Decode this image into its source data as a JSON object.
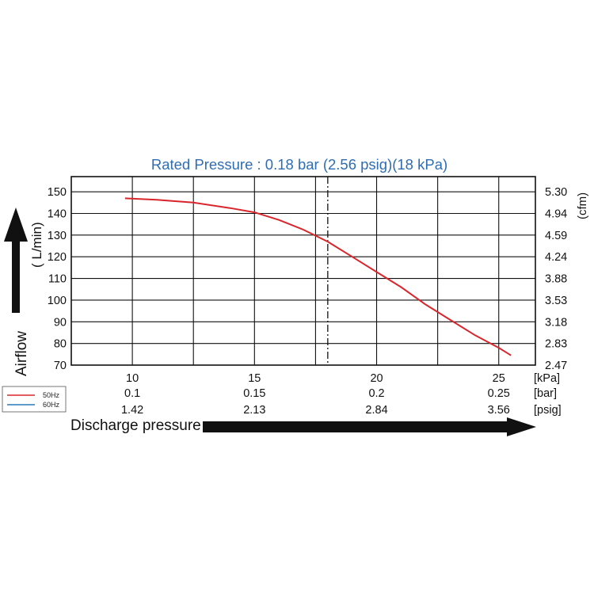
{
  "chart_data": {
    "type": "line",
    "title": "Rated Pressure : 0.18 bar (2.56 psig)(18 kPa)",
    "xlabel": "Discharge pressure",
    "ylabel_left": "Airflow",
    "ylabel_left_unit": "( L/min)",
    "ylabel_right_unit": "(cfm)",
    "xlim": [
      7.5,
      26.5
    ],
    "ylim": [
      70,
      157
    ],
    "grid": true,
    "rated_pressure_kpa": 18,
    "x_rows": [
      {
        "unit": "[kPa]",
        "ticks": [
          {
            "x": 10,
            "label": "10"
          },
          {
            "x": 15,
            "label": "15"
          },
          {
            "x": 20,
            "label": "20"
          },
          {
            "x": 25,
            "label": "25"
          }
        ]
      },
      {
        "unit": "[bar]",
        "ticks": [
          {
            "x": 10,
            "label": "0.1"
          },
          {
            "x": 15,
            "label": "0.15"
          },
          {
            "x": 20,
            "label": "0.2"
          },
          {
            "x": 25,
            "label": "0.25"
          }
        ]
      },
      {
        "unit": "[psig]",
        "ticks": [
          {
            "x": 10,
            "label": "1.42"
          },
          {
            "x": 15,
            "label": "2.13"
          },
          {
            "x": 20,
            "label": "2.84"
          },
          {
            "x": 25,
            "label": "3.56"
          }
        ]
      }
    ],
    "y_ticks_left": [
      70,
      80,
      90,
      100,
      110,
      120,
      130,
      140,
      150
    ],
    "y_ticks_right": [
      {
        "y": 70,
        "label": "2.47"
      },
      {
        "y": 80,
        "label": "2.83"
      },
      {
        "y": 90,
        "label": "3.18"
      },
      {
        "y": 100,
        "label": "3.53"
      },
      {
        "y": 110,
        "label": "3.88"
      },
      {
        "y": 120,
        "label": "4.24"
      },
      {
        "y": 130,
        "label": "4.59"
      },
      {
        "y": 140,
        "label": "4.94"
      },
      {
        "y": 150,
        "label": "5.30"
      }
    ],
    "series": [
      {
        "name": "50Hz",
        "color": "#d9262c",
        "x": [
          9.7,
          11.0,
          12.5,
          14.0,
          15.0,
          16.0,
          17.0,
          18.0,
          19.0,
          20.0,
          21.0,
          22.0,
          23.0,
          24.0,
          25.0,
          25.5
        ],
        "y": [
          147,
          146.3,
          145,
          142.5,
          140.5,
          137,
          132.5,
          127,
          120,
          113,
          106,
          98,
          91,
          84,
          78,
          74.5
        ]
      },
      {
        "name": "60Hz",
        "color": "#2a7ab8",
        "x": [],
        "y": []
      }
    ],
    "legend": {
      "position": "left-middle"
    }
  }
}
